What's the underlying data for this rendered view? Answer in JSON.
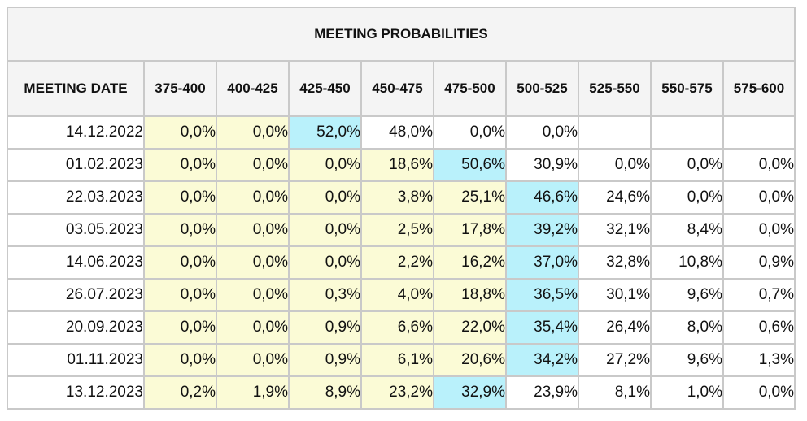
{
  "table": {
    "title": "MEETING PROBABILITIES",
    "headers": [
      "MEETING DATE",
      "375-400",
      "400-425",
      "425-450",
      "450-475",
      "475-500",
      "500-525",
      "525-550",
      "550-575",
      "575-600"
    ],
    "colors": {
      "yellow": "#fbfbd6",
      "cyan": "#b9f1fb",
      "white": "#ffffff",
      "border": "#c9c9c9",
      "header_bg": "#f4f4f4"
    },
    "rows": [
      {
        "date": "14.12.2022",
        "values": [
          "0,0%",
          "0,0%",
          "52,0%",
          "48,0%",
          "0,0%",
          "0,0%",
          "",
          "",
          ""
        ],
        "shades": [
          "y",
          "y",
          "c",
          "w",
          "w",
          "w",
          "w",
          "w",
          "w"
        ]
      },
      {
        "date": "01.02.2023",
        "values": [
          "0,0%",
          "0,0%",
          "0,0%",
          "18,6%",
          "50,6%",
          "30,9%",
          "0,0%",
          "0,0%",
          "0,0%"
        ],
        "shades": [
          "y",
          "y",
          "y",
          "y",
          "c",
          "w",
          "w",
          "w",
          "w"
        ]
      },
      {
        "date": "22.03.2023",
        "values": [
          "0,0%",
          "0,0%",
          "0,0%",
          "3,8%",
          "25,1%",
          "46,6%",
          "24,6%",
          "0,0%",
          "0,0%"
        ],
        "shades": [
          "y",
          "y",
          "y",
          "y",
          "y",
          "c",
          "w",
          "w",
          "w"
        ]
      },
      {
        "date": "03.05.2023",
        "values": [
          "0,0%",
          "0,0%",
          "0,0%",
          "2,5%",
          "17,8%",
          "39,2%",
          "32,1%",
          "8,4%",
          "0,0%"
        ],
        "shades": [
          "y",
          "y",
          "y",
          "y",
          "y",
          "c",
          "w",
          "w",
          "w"
        ]
      },
      {
        "date": "14.06.2023",
        "values": [
          "0,0%",
          "0,0%",
          "0,0%",
          "2,2%",
          "16,2%",
          "37,0%",
          "32,8%",
          "10,8%",
          "0,9%"
        ],
        "shades": [
          "y",
          "y",
          "y",
          "y",
          "y",
          "c",
          "w",
          "w",
          "w"
        ]
      },
      {
        "date": "26.07.2023",
        "values": [
          "0,0%",
          "0,0%",
          "0,3%",
          "4,0%",
          "18,8%",
          "36,5%",
          "30,1%",
          "9,6%",
          "0,7%"
        ],
        "shades": [
          "y",
          "y",
          "y",
          "y",
          "y",
          "c",
          "w",
          "w",
          "w"
        ]
      },
      {
        "date": "20.09.2023",
        "values": [
          "0,0%",
          "0,0%",
          "0,9%",
          "6,6%",
          "22,0%",
          "35,4%",
          "26,4%",
          "8,0%",
          "0,6%"
        ],
        "shades": [
          "y",
          "y",
          "y",
          "y",
          "y",
          "c",
          "w",
          "w",
          "w"
        ]
      },
      {
        "date": "01.11.2023",
        "values": [
          "0,0%",
          "0,0%",
          "0,9%",
          "6,1%",
          "20,6%",
          "34,2%",
          "27,2%",
          "9,6%",
          "1,3%"
        ],
        "shades": [
          "y",
          "y",
          "y",
          "y",
          "y",
          "c",
          "w",
          "w",
          "w"
        ]
      },
      {
        "date": "13.12.2023",
        "values": [
          "0,2%",
          "1,9%",
          "8,9%",
          "23,2%",
          "32,9%",
          "23,9%",
          "8,1%",
          "1,0%",
          "0,0%"
        ],
        "shades": [
          "y",
          "y",
          "y",
          "y",
          "c",
          "w",
          "w",
          "w",
          "w"
        ]
      }
    ]
  }
}
